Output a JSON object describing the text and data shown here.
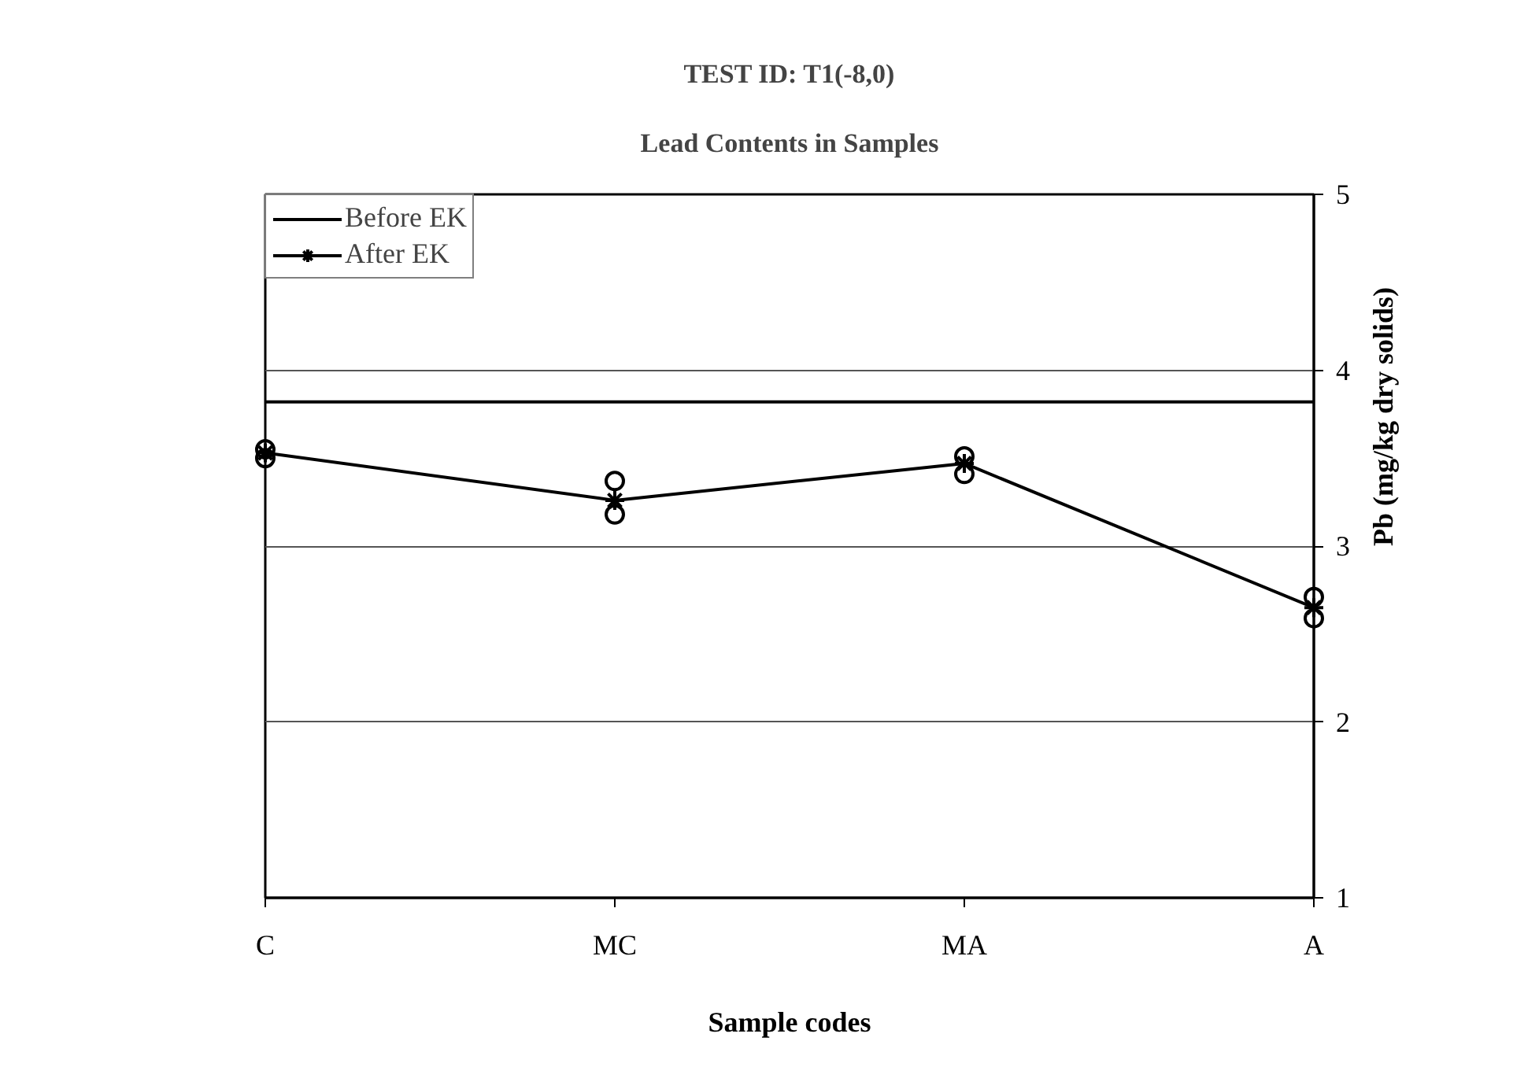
{
  "chart_data": {
    "type": "line",
    "title": "TEST ID: T1(-8,0)",
    "subtitle": "Lead Contents in Samples",
    "xlabel": "Sample codes",
    "ylabel": "Pb (mg/kg dry solids)",
    "categories": [
      "C",
      "MC",
      "MA",
      "A"
    ],
    "series": [
      {
        "name": "Before EK",
        "color": "#000000",
        "values": [
          3.82,
          3.82,
          3.82,
          3.82
        ],
        "marker": "none"
      },
      {
        "name": "After EK",
        "color": "#000000",
        "values": [
          3.53,
          3.26,
          3.47,
          2.65
        ],
        "marker": "cross"
      },
      {
        "type": "scatter",
        "color": "#000000",
        "x": [
          "C",
          "C",
          "MC",
          "MC",
          "MA",
          "MA",
          "A",
          "A"
        ],
        "values": [
          3.55,
          3.5,
          3.37,
          3.18,
          3.51,
          3.41,
          2.71,
          2.59
        ],
        "marker": "circle"
      }
    ],
    "ylim": [
      1,
      5
    ],
    "yticks": [
      1,
      2,
      3,
      4,
      5
    ],
    "grid": "y",
    "legend": "top left",
    "line_style": "solid"
  }
}
